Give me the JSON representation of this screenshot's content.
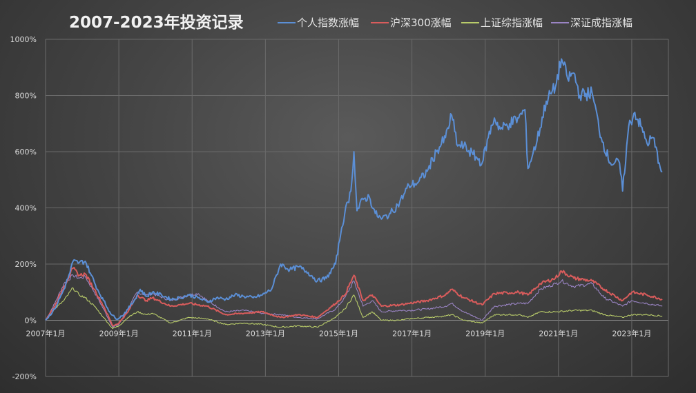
{
  "chart_data": {
    "type": "line",
    "title": "2007-2023年投资记录",
    "xlabel": "",
    "ylabel": "",
    "ylim": [
      -200,
      1000
    ],
    "xlim": [
      "2007-01",
      "2024-01"
    ],
    "y_unit": "%",
    "y_ticks": [
      -200,
      0,
      200,
      400,
      600,
      800,
      1000
    ],
    "x_ticks": [
      "2007-01",
      "2009-01",
      "2011-01",
      "2013-01",
      "2015-01",
      "2017-01",
      "2019-01",
      "2021-01",
      "2023-01"
    ],
    "grid": true,
    "legend_position": "top",
    "series": [
      {
        "name": "个人指数涨幅",
        "color": "#5b8fd6",
        "points": [
          [
            "2007-01",
            0
          ],
          [
            "2007-04",
            40
          ],
          [
            "2007-07",
            110
          ],
          [
            "2007-09",
            170
          ],
          [
            "2007-10",
            210
          ],
          [
            "2007-12",
            205
          ],
          [
            "2008-02",
            210
          ],
          [
            "2008-04",
            160
          ],
          [
            "2008-06",
            110
          ],
          [
            "2008-08",
            70
          ],
          [
            "2008-10",
            30
          ],
          [
            "2008-12",
            5
          ],
          [
            "2009-02",
            15
          ],
          [
            "2009-04",
            40
          ],
          [
            "2009-06",
            70
          ],
          [
            "2009-08",
            110
          ],
          [
            "2009-10",
            85
          ],
          [
            "2009-12",
            100
          ],
          [
            "2010-03",
            90
          ],
          [
            "2010-06",
            75
          ],
          [
            "2010-09",
            80
          ],
          [
            "2010-12",
            90
          ],
          [
            "2011-03",
            80
          ],
          [
            "2011-06",
            65
          ],
          [
            "2011-09",
            80
          ],
          [
            "2011-12",
            75
          ],
          [
            "2012-03",
            90
          ],
          [
            "2012-06",
            85
          ],
          [
            "2012-09",
            80
          ],
          [
            "2012-12",
            90
          ],
          [
            "2013-03",
            110
          ],
          [
            "2013-06",
            200
          ],
          [
            "2013-09",
            180
          ],
          [
            "2013-12",
            190
          ],
          [
            "2014-03",
            170
          ],
          [
            "2014-06",
            140
          ],
          [
            "2014-09",
            150
          ],
          [
            "2014-12",
            200
          ],
          [
            "2015-02",
            330
          ],
          [
            "2015-03",
            380
          ],
          [
            "2015-05",
            460
          ],
          [
            "2015-06",
            600
          ],
          [
            "2015-07",
            390
          ],
          [
            "2015-09",
            430
          ],
          [
            "2015-11",
            440
          ],
          [
            "2016-01",
            380
          ],
          [
            "2016-03",
            360
          ],
          [
            "2016-06",
            380
          ],
          [
            "2016-09",
            420
          ],
          [
            "2016-12",
            480
          ],
          [
            "2017-03",
            490
          ],
          [
            "2017-06",
            530
          ],
          [
            "2017-09",
            600
          ],
          [
            "2017-12",
            650
          ],
          [
            "2018-02",
            730
          ],
          [
            "2018-04",
            620
          ],
          [
            "2018-06",
            620
          ],
          [
            "2018-09",
            590
          ],
          [
            "2018-12",
            560
          ],
          [
            "2019-02",
            650
          ],
          [
            "2019-04",
            720
          ],
          [
            "2019-06",
            680
          ],
          [
            "2019-09",
            700
          ],
          [
            "2019-12",
            720
          ],
          [
            "2020-02",
            750
          ],
          [
            "2020-03",
            540
          ],
          [
            "2020-06",
            640
          ],
          [
            "2020-09",
            780
          ],
          [
            "2020-12",
            830
          ],
          [
            "2021-02",
            930
          ],
          [
            "2021-04",
            860
          ],
          [
            "2021-06",
            880
          ],
          [
            "2021-08",
            800
          ],
          [
            "2021-12",
            810
          ],
          [
            "2022-03",
            650
          ],
          [
            "2022-06",
            560
          ],
          [
            "2022-09",
            560
          ],
          [
            "2022-10",
            460
          ],
          [
            "2022-12",
            690
          ],
          [
            "2023-02",
            740
          ],
          [
            "2023-04",
            690
          ],
          [
            "2023-06",
            630
          ],
          [
            "2023-08",
            650
          ],
          [
            "2023-10",
            560
          ],
          [
            "2023-11",
            530
          ]
        ]
      },
      {
        "name": "沪深300涨幅",
        "color": "#d95c5c",
        "points": [
          [
            "2007-01",
            0
          ],
          [
            "2007-04",
            50
          ],
          [
            "2007-07",
            120
          ],
          [
            "2007-10",
            185
          ],
          [
            "2007-12",
            160
          ],
          [
            "2008-02",
            165
          ],
          [
            "2008-05",
            110
          ],
          [
            "2008-08",
            50
          ],
          [
            "2008-11",
            -20
          ],
          [
            "2009-01",
            -10
          ],
          [
            "2009-04",
            30
          ],
          [
            "2009-07",
            90
          ],
          [
            "2009-10",
            70
          ],
          [
            "2009-12",
            80
          ],
          [
            "2010-06",
            50
          ],
          [
            "2010-12",
            60
          ],
          [
            "2011-06",
            50
          ],
          [
            "2011-12",
            20
          ],
          [
            "2012-06",
            25
          ],
          [
            "2012-12",
            30
          ],
          [
            "2013-06",
            10
          ],
          [
            "2013-12",
            20
          ],
          [
            "2014-06",
            10
          ],
          [
            "2014-12",
            60
          ],
          [
            "2015-03",
            90
          ],
          [
            "2015-06",
            160
          ],
          [
            "2015-09",
            70
          ],
          [
            "2015-12",
            90
          ],
          [
            "2016-03",
            50
          ],
          [
            "2016-09",
            55
          ],
          [
            "2016-12",
            60
          ],
          [
            "2017-06",
            70
          ],
          [
            "2017-12",
            90
          ],
          [
            "2018-02",
            110
          ],
          [
            "2018-06",
            80
          ],
          [
            "2018-12",
            55
          ],
          [
            "2019-04",
            95
          ],
          [
            "2019-12",
            100
          ],
          [
            "2020-03",
            90
          ],
          [
            "2020-07",
            130
          ],
          [
            "2020-12",
            150
          ],
          [
            "2021-02",
            175
          ],
          [
            "2021-06",
            150
          ],
          [
            "2021-12",
            140
          ],
          [
            "2022-04",
            110
          ],
          [
            "2022-10",
            70
          ],
          [
            "2023-01",
            100
          ],
          [
            "2023-06",
            90
          ],
          [
            "2023-11",
            75
          ]
        ]
      },
      {
        "name": "上证综指涨幅",
        "color": "#b9cc6a",
        "points": [
          [
            "2007-01",
            0
          ],
          [
            "2007-04",
            40
          ],
          [
            "2007-07",
            70
          ],
          [
            "2007-10",
            115
          ],
          [
            "2007-12",
            90
          ],
          [
            "2008-02",
            80
          ],
          [
            "2008-05",
            50
          ],
          [
            "2008-08",
            10
          ],
          [
            "2008-11",
            -30
          ],
          [
            "2009-01",
            -20
          ],
          [
            "2009-04",
            10
          ],
          [
            "2009-07",
            30
          ],
          [
            "2009-10",
            20
          ],
          [
            "2009-12",
            25
          ],
          [
            "2010-06",
            -10
          ],
          [
            "2010-12",
            10
          ],
          [
            "2011-06",
            5
          ],
          [
            "2011-12",
            -15
          ],
          [
            "2012-06",
            -10
          ],
          [
            "2012-12",
            -15
          ],
          [
            "2013-06",
            -25
          ],
          [
            "2013-12",
            -20
          ],
          [
            "2014-06",
            -25
          ],
          [
            "2014-12",
            10
          ],
          [
            "2015-03",
            40
          ],
          [
            "2015-06",
            90
          ],
          [
            "2015-09",
            10
          ],
          [
            "2015-12",
            30
          ],
          [
            "2016-03",
            0
          ],
          [
            "2016-09",
            0
          ],
          [
            "2016-12",
            5
          ],
          [
            "2017-06",
            10
          ],
          [
            "2017-12",
            15
          ],
          [
            "2018-02",
            20
          ],
          [
            "2018-06",
            0
          ],
          [
            "2018-12",
            -10
          ],
          [
            "2019-04",
            20
          ],
          [
            "2019-12",
            20
          ],
          [
            "2020-03",
            10
          ],
          [
            "2020-07",
            30
          ],
          [
            "2020-12",
            30
          ],
          [
            "2021-06",
            35
          ],
          [
            "2021-12",
            35
          ],
          [
            "2022-04",
            20
          ],
          [
            "2022-10",
            10
          ],
          [
            "2023-01",
            20
          ],
          [
            "2023-06",
            20
          ],
          [
            "2023-11",
            15
          ]
        ]
      },
      {
        "name": "深证成指涨幅",
        "color": "#9a84c4",
        "points": [
          [
            "2007-01",
            0
          ],
          [
            "2007-04",
            60
          ],
          [
            "2007-07",
            130
          ],
          [
            "2007-10",
            160
          ],
          [
            "2007-12",
            150
          ],
          [
            "2008-02",
            155
          ],
          [
            "2008-05",
            100
          ],
          [
            "2008-08",
            40
          ],
          [
            "2008-11",
            -25
          ],
          [
            "2009-01",
            -15
          ],
          [
            "2009-04",
            40
          ],
          [
            "2009-07",
            100
          ],
          [
            "2009-10",
            90
          ],
          [
            "2009-12",
            95
          ],
          [
            "2010-06",
            70
          ],
          [
            "2010-12",
            90
          ],
          [
            "2011-03",
            95
          ],
          [
            "2011-06",
            70
          ],
          [
            "2011-12",
            30
          ],
          [
            "2012-06",
            35
          ],
          [
            "2012-12",
            25
          ],
          [
            "2013-06",
            20
          ],
          [
            "2013-12",
            10
          ],
          [
            "2014-06",
            5
          ],
          [
            "2014-12",
            40
          ],
          [
            "2015-03",
            80
          ],
          [
            "2015-06",
            140
          ],
          [
            "2015-09",
            50
          ],
          [
            "2015-12",
            70
          ],
          [
            "2016-03",
            30
          ],
          [
            "2016-09",
            35
          ],
          [
            "2016-12",
            35
          ],
          [
            "2017-06",
            40
          ],
          [
            "2017-12",
            50
          ],
          [
            "2018-02",
            60
          ],
          [
            "2018-06",
            30
          ],
          [
            "2018-12",
            0
          ],
          [
            "2019-04",
            50
          ],
          [
            "2019-12",
            60
          ],
          [
            "2020-03",
            60
          ],
          [
            "2020-07",
            110
          ],
          [
            "2020-12",
            130
          ],
          [
            "2021-02",
            140
          ],
          [
            "2021-06",
            120
          ],
          [
            "2021-12",
            130
          ],
          [
            "2022-04",
            80
          ],
          [
            "2022-10",
            50
          ],
          [
            "2023-01",
            70
          ],
          [
            "2023-06",
            60
          ],
          [
            "2023-11",
            50
          ]
        ]
      }
    ]
  }
}
